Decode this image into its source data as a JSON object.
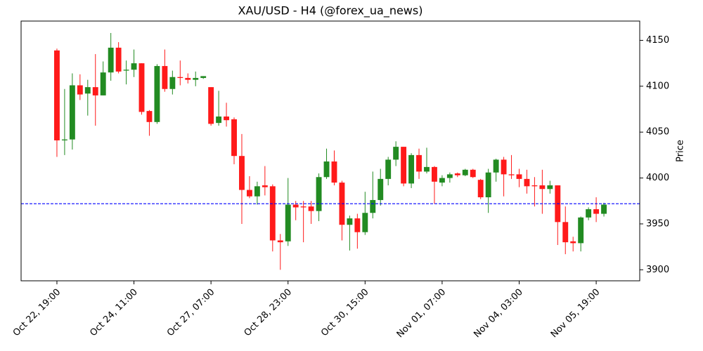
{
  "chart_data": {
    "type": "candlestick",
    "title": "XAU/USD - H4 (@forex_ua_news)",
    "y_label": "Price",
    "categories": [
      "Oct 22, 19:00",
      null,
      null,
      null,
      null,
      null,
      null,
      null,
      null,
      null,
      "Oct 24, 11:00",
      null,
      null,
      null,
      null,
      null,
      null,
      null,
      null,
      null,
      "Oct 27, 07:00",
      null,
      null,
      null,
      null,
      null,
      null,
      null,
      null,
      null,
      "Oct 28, 23:00",
      null,
      null,
      null,
      null,
      null,
      null,
      null,
      null,
      null,
      "Oct 30, 15:00",
      null,
      null,
      null,
      null,
      null,
      null,
      null,
      null,
      null,
      "Nov 01, 07:00",
      null,
      null,
      null,
      null,
      null,
      null,
      null,
      null,
      null,
      "Nov 04, 03:00",
      null,
      null,
      null,
      null,
      null,
      null,
      null,
      null,
      null,
      "Nov 05, 19:00",
      null
    ],
    "open": [
      4139,
      4041,
      4042,
      4101,
      4092,
      4099,
      4090,
      4115,
      4142,
      4117,
      4118,
      4125,
      4073,
      4061,
      4122,
      4097,
      4110,
      4109,
      4107,
      4109,
      4099,
      4060,
      4067,
      4064,
      4024,
      3987,
      3980,
      3992,
      3991,
      3932,
      3931,
      3971,
      3969,
      3969,
      3964,
      4001,
      4018,
      3995,
      3949,
      3956,
      3941,
      3962,
      3976,
      3999,
      4020,
      4034,
      3994,
      4025,
      4007,
      4012,
      3995,
      4000,
      4005,
      4003,
      4009,
      3998,
      3979,
      4006,
      4020,
      4004,
      4004,
      3999,
      3992,
      3992,
      3988,
      3992,
      3952,
      3931,
      3929,
      3957,
      3966,
      3961
    ],
    "high": [
      4141,
      4097,
      4114,
      4113,
      4107,
      4135,
      4127,
      4158,
      4148,
      4128,
      4140,
      4125,
      4074,
      4124,
      4140,
      4117,
      4128,
      4114,
      4116,
      4111,
      4099,
      4095,
      4082,
      4066,
      4048,
      4002,
      3996,
      4013,
      3993,
      3939,
      4000,
      3975,
      3975,
      3975,
      4005,
      4032,
      4030,
      3997,
      3959,
      3961,
      3985,
      4007,
      4010,
      4023,
      4040,
      4034,
      4027,
      4032,
      4033,
      4013,
      4003,
      4006,
      4006,
      4010,
      4010,
      3999,
      4010,
      4021,
      4023,
      4025,
      4010,
      4009,
      4001,
      4009,
      3997,
      3992,
      3969,
      3936,
      3958,
      3968,
      3979,
      3973
    ],
    "low": [
      4023,
      4025,
      4031,
      4085,
      4068,
      4057,
      4090,
      4106,
      4114,
      4102,
      4110,
      4069,
      4046,
      4059,
      4094,
      4091,
      4101,
      4103,
      4100,
      4108,
      4057,
      4057,
      4056,
      4015,
      3950,
      3978,
      3971,
      3981,
      3920,
      3900,
      3926,
      3954,
      3930,
      3950,
      3953,
      3999,
      3992,
      3932,
      3921,
      3923,
      3938,
      3956,
      3970,
      3992,
      4013,
      3991,
      3989,
      3999,
      4005,
      3972,
      3991,
      3995,
      4001,
      4002,
      4000,
      3977,
      3962,
      3996,
      3980,
      3999,
      3990,
      3983,
      3969,
      3961,
      3983,
      3927,
      3917,
      3920,
      3920,
      3954,
      3952,
      3958
    ],
    "close": [
      4041,
      4042,
      4101,
      4091,
      4099,
      4090,
      4115,
      4142,
      4116,
      4118,
      4125,
      4072,
      4061,
      4122,
      4097,
      4110,
      4109,
      4107,
      4109,
      4111,
      4059,
      4067,
      4063,
      4024,
      3987,
      3980,
      3991,
      3990,
      3932,
      3930,
      3971,
      3968,
      3968,
      3964,
      4001,
      4018,
      3995,
      3949,
      3956,
      3941,
      3962,
      3976,
      3999,
      4020,
      4034,
      3994,
      4025,
      4007,
      4012,
      3996,
      4000,
      4004,
      4003,
      4009,
      4001,
      3979,
      4006,
      4020,
      4004,
      4003,
      3999,
      3991,
      3991,
      3988,
      3992,
      3952,
      3930,
      3929,
      3957,
      3966,
      3961,
      3971
    ],
    "up_color": "#228b22",
    "down_color": "#ff1a1a",
    "hline": 3972,
    "hline_color": "#0000ff",
    "ylim": [
      3888,
      4171
    ],
    "yticks": [
      3900,
      3950,
      4000,
      4050,
      4100,
      4150
    ]
  }
}
